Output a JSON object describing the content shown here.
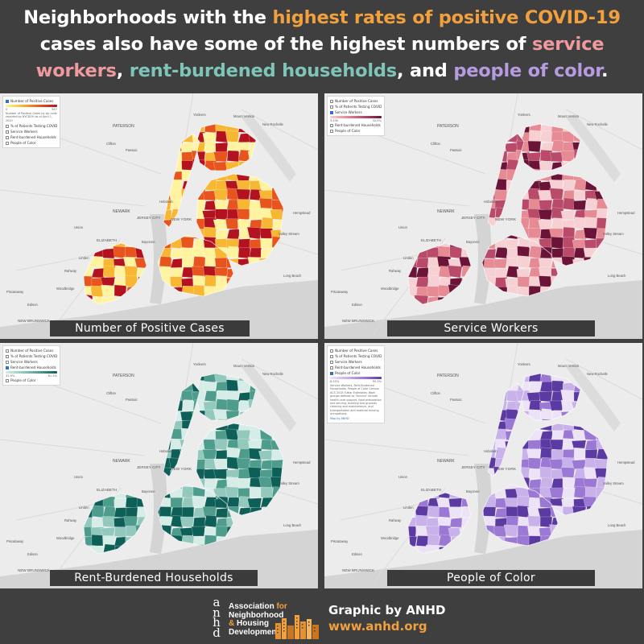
{
  "headline": {
    "part1": "Neighborhoods with the ",
    "highlight_cases": "highest rates of positive COVID-19",
    "part2": " cases also have some of the highest numbers of ",
    "highlight_service": "service workers",
    "part3": ", ",
    "highlight_rent": "rent-burdened households",
    "part4": ", and ",
    "highlight_poc": "people of color",
    "part5": "."
  },
  "colors": {
    "background": "#3f3f3f",
    "cases": "#f2a03d",
    "service": "#ef9a9e",
    "rent": "#7ec4b8",
    "poc": "#b79be0",
    "water": "#d2d2d2",
    "land": "#ececec"
  },
  "panels": [
    {
      "caption": "Number of Positive Cases",
      "ramp": [
        "#fff3a0",
        "#f7b733",
        "#e8541e",
        "#b3121f"
      ],
      "legend": {
        "items": [
          {
            "label": "Number of Positive Cases",
            "checked": true
          },
          {
            "label": "% of Patients Testing COVID Po...",
            "checked": false
          },
          {
            "label": "Service Workers",
            "checked": false
          },
          {
            "label": "Rent-burdened Households",
            "checked": false
          },
          {
            "label": "People of Color",
            "checked": false
          }
        ],
        "ramp_min": "0",
        "ramp_max": "567",
        "note": "Number of Positive Cases by zip code reported by NYCDOH as of April 1, 2020"
      }
    },
    {
      "caption": "Service Workers",
      "ramp": [
        "#f6d0d2",
        "#e68a94",
        "#b94a6a",
        "#6b1438"
      ],
      "legend": {
        "items": [
          {
            "label": "Number of Positive Cases",
            "checked": false
          },
          {
            "label": "% of Patients Testing COVID Po...",
            "checked": false
          },
          {
            "label": "Service Workers",
            "checked": true
          },
          {
            "label": "Rent-burdened Households",
            "checked": false
          },
          {
            "label": "People of Color",
            "checked": false
          }
        ],
        "ramp_min": "3.43k",
        "ramp_max": "32.9%"
      }
    },
    {
      "caption": "Rent-Burdened Households",
      "ramp": [
        "#d6ece7",
        "#93c9bd",
        "#4e9c8c",
        "#0e5f58"
      ],
      "legend": {
        "items": [
          {
            "label": "Number of Positive Cases",
            "checked": false
          },
          {
            "label": "% of Patients Testing COVID Po...",
            "checked": false
          },
          {
            "label": "Service Workers",
            "checked": false
          },
          {
            "label": "Rent-burdened Households",
            "checked": true
          },
          {
            "label": "People of Color",
            "checked": false
          }
        ],
        "ramp_min": "31.9%",
        "ramp_max": "61.3%"
      }
    },
    {
      "caption": "People of Color",
      "ramp": [
        "#ece3f6",
        "#c9b2ea",
        "#9b78d4",
        "#5b3aa2"
      ],
      "legend": {
        "items": [
          {
            "label": "Number of Positive Cases",
            "checked": false
          },
          {
            "label": "% of Patients Testing COVID Po...",
            "checked": false
          },
          {
            "label": "Service Workers",
            "checked": false
          },
          {
            "label": "Rent-burdened Households",
            "checked": false
          },
          {
            "label": "People of Color",
            "checked": true
          }
        ],
        "ramp_min": "8.45%",
        "ramp_max": "95.3%",
        "note": "Service Workers, Rent-Burdened Households, People of Color Census ACS 2018 5-Year Estimates; Work groups defined as 'Service' include health care support, food preparation and serving, building and grounds cleaning and maintenance, and transportation and material moving occupations.",
        "map_credit": "Map by ANHD"
      }
    }
  ],
  "map_labels": {
    "paterson": "PATERSON",
    "newark": "NEWARK",
    "jersey_city": "JERSEY CITY",
    "new_york": "NEW YORK",
    "elizabeth": "ELIZABETH",
    "new_brunswick": "NEW BRUNSWICK",
    "yonkers": "Yonkers",
    "mount_vernon": "Mount Vernon",
    "new_rochelle": "New Rochelle",
    "valley_stream": "Valley Stream",
    "long_beach": "Long Beach",
    "union": "Union",
    "linden": "Linden",
    "rahway": "Rahway",
    "clifton": "Clifton",
    "passaic": "Passaic",
    "bayonne": "Bayonne",
    "hoboken": "Hoboken",
    "hempstead": "Hempstead",
    "piscataway": "Piscataway",
    "edison": "Edison",
    "woodbridge": "Woodbridge"
  },
  "footer": {
    "logo_letters": [
      "a",
      "n",
      "h",
      "d"
    ],
    "org_line1": "Association",
    "org_line1_suffix": " for",
    "org_line2": "Neighborhood",
    "org_line3_amp": "&",
    "org_line3": " Housing",
    "org_line4": "Development",
    "credit": "Graphic by ANHD",
    "url": "www.anhd.org"
  }
}
